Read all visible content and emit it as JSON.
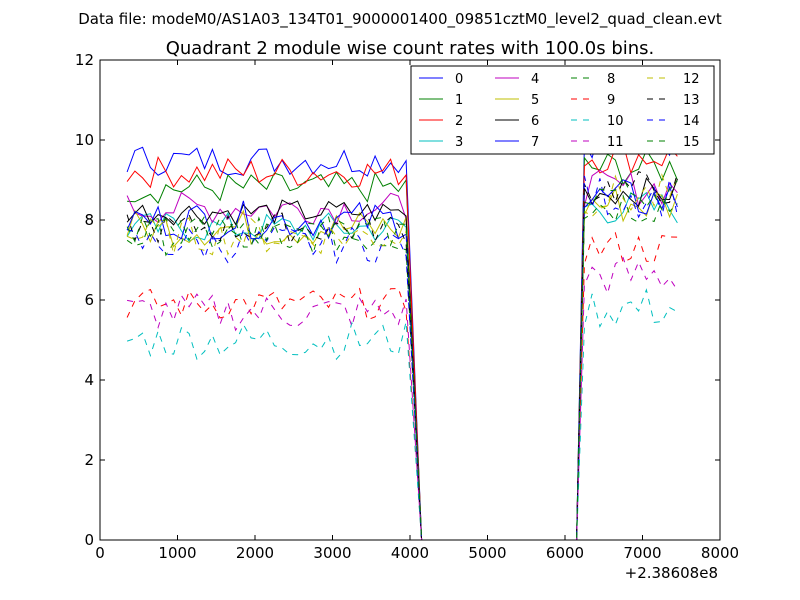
{
  "chart_data": {
    "type": "line",
    "suptitle": "Data file: modeM0/AS1A03_134T01_9000001400_09851cztM0_level2_quad_clean.evt",
    "title": "Quadrant 2 module wise count rates with 100.0s bins.",
    "xlabel": "",
    "ylabel": "",
    "x_offset_label": "+2.38608e8",
    "xlim": [
      0,
      8000
    ],
    "ylim": [
      0,
      12
    ],
    "xticks": [
      0,
      1000,
      2000,
      3000,
      4000,
      5000,
      6000,
      7000,
      8000
    ],
    "xtick_labels": [
      "0",
      "1000",
      "2000",
      "3000",
      "4000",
      "5000",
      "6000",
      "7000",
      "8000"
    ],
    "yticks": [
      0,
      2,
      4,
      6,
      8,
      10,
      12
    ],
    "ytick_labels": [
      "0",
      "2",
      "4",
      "6",
      "8",
      "10",
      "12"
    ],
    "legend_position": "top-right",
    "gap": {
      "last_x1": 3950,
      "zero_from": 4150,
      "zero_to": 6150,
      "first_x2": 6250,
      "end_x": 7450,
      "start_x": 350,
      "step": 100
    },
    "series": [
      {
        "name": "0",
        "color": "#0000ff",
        "dash": false,
        "level": 9.5,
        "amp": 0.25,
        "level2": 10.0
      },
      {
        "name": "1",
        "color": "#008000",
        "dash": false,
        "level": 8.8,
        "amp": 0.25,
        "level2": 9.3
      },
      {
        "name": "2",
        "color": "#ff0000",
        "dash": false,
        "level": 9.2,
        "amp": 0.25,
        "level2": 9.6
      },
      {
        "name": "3",
        "color": "#00bfbf",
        "dash": false,
        "level": 7.8,
        "amp": 0.25,
        "level2": 8.3
      },
      {
        "name": "4",
        "color": "#bf00bf",
        "dash": false,
        "level": 8.3,
        "amp": 0.25,
        "level2": 8.8
      },
      {
        "name": "5",
        "color": "#bfbf00",
        "dash": false,
        "level": 7.8,
        "amp": 0.3,
        "level2": 8.4
      },
      {
        "name": "6",
        "color": "#000000",
        "dash": false,
        "level": 8.2,
        "amp": 0.2,
        "level2": 8.7
      },
      {
        "name": "7",
        "color": "#0000ff",
        "dash": false,
        "level": 8.0,
        "amp": 0.3,
        "level2": 8.5
      },
      {
        "name": "8",
        "color": "#008000",
        "dash": true,
        "level": 7.6,
        "amp": 0.3,
        "level2": 8.4
      },
      {
        "name": "9",
        "color": "#ff0000",
        "dash": true,
        "level": 5.9,
        "amp": 0.25,
        "level2": 7.3
      },
      {
        "name": "10",
        "color": "#00bfbf",
        "dash": true,
        "level": 5.0,
        "amp": 0.3,
        "level2": 5.8
      },
      {
        "name": "11",
        "color": "#bf00bf",
        "dash": true,
        "level": 5.7,
        "amp": 0.3,
        "level2": 6.6
      },
      {
        "name": "12",
        "color": "#bfbf00",
        "dash": true,
        "level": 7.6,
        "amp": 0.3,
        "level2": 8.6
      },
      {
        "name": "13",
        "color": "#000000",
        "dash": true,
        "level": 7.8,
        "amp": 0.25,
        "level2": 8.8
      },
      {
        "name": "14",
        "color": "#0000ff",
        "dash": true,
        "level": 7.4,
        "amp": 0.3,
        "level2": 8.6
      },
      {
        "name": "15",
        "color": "#008000",
        "dash": true,
        "level": 7.7,
        "amp": 0.25,
        "level2": 8.7
      }
    ],
    "extra_series": [
      {
        "name": "light-blue-top",
        "color": "#7f7fff",
        "level2": 10.6
      },
      {
        "name": "pink-top",
        "color": "#ff7f7f",
        "level2": 10.2
      }
    ]
  }
}
